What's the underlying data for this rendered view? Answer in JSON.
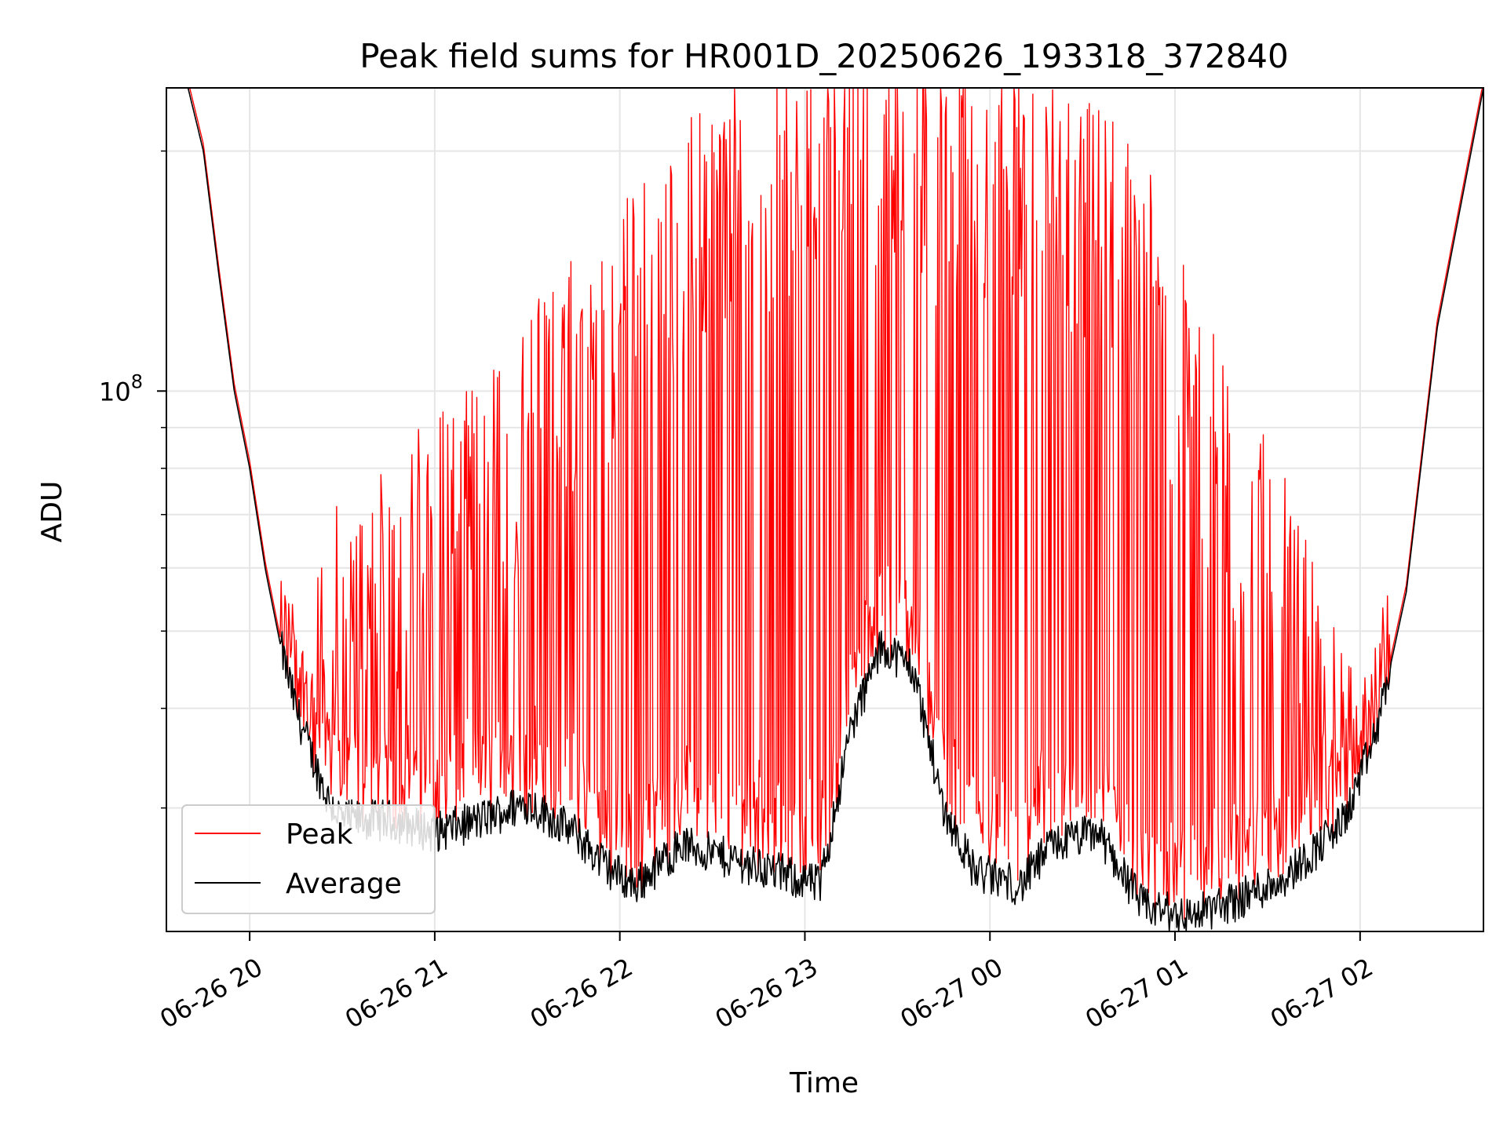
{
  "chart_data": {
    "type": "line",
    "title": "Peak field sums for HR001D_20250626_193318_372840",
    "xlabel": "Time",
    "ylabel": "ADU",
    "y_scale": "log",
    "xlim": [
      "2025-06-26 19:33",
      "2025-06-27 02:40"
    ],
    "ylim": [
      21000000,
      240000000
    ],
    "grid": true,
    "legend_position": "lower-left",
    "x_ticks": [
      "06-26 20",
      "06-26 21",
      "06-26 22",
      "06-26 23",
      "06-27 00",
      "06-27 01",
      "06-27 02"
    ],
    "y_ticks": [
      {
        "value": 100000000,
        "base": "10",
        "exp": "8"
      }
    ],
    "series": [
      {
        "name": "Average",
        "color": "#000000",
        "x": [
          "2025-06-26 19:33",
          "2025-06-26 19:40",
          "2025-06-26 19:45",
          "2025-06-26 19:50",
          "2025-06-26 19:55",
          "2025-06-26 20:00",
          "2025-06-26 20:05",
          "2025-06-26 20:10",
          "2025-06-26 20:15",
          "2025-06-26 20:20",
          "2025-06-26 20:25",
          "2025-06-26 20:30",
          "2025-06-26 20:45",
          "2025-06-26 21:00",
          "2025-06-26 21:15",
          "2025-06-26 21:30",
          "2025-06-26 21:45",
          "2025-06-26 21:55",
          "2025-06-26 22:05",
          "2025-06-26 22:20",
          "2025-06-26 22:35",
          "2025-06-26 22:50",
          "2025-06-26 23:05",
          "2025-06-26 23:15",
          "2025-06-26 23:25",
          "2025-06-26 23:35",
          "2025-06-26 23:45",
          "2025-06-26 23:55",
          "2025-06-27 00:10",
          "2025-06-27 00:20",
          "2025-06-27 00:35",
          "2025-06-27 00:50",
          "2025-06-27 01:05",
          "2025-06-27 01:20",
          "2025-06-27 01:35",
          "2025-06-27 01:45",
          "2025-06-27 01:55",
          "2025-06-27 02:05",
          "2025-06-27 02:15",
          "2025-06-27 02:25",
          "2025-06-27 02:40"
        ],
        "y": [
          240000000,
          240000000,
          200000000,
          140000000,
          100000000,
          80000000,
          60000000,
          48000000,
          40000000,
          35000000,
          31000000,
          29000000,
          29000000,
          28000000,
          29000000,
          30500000,
          28000000,
          25500000,
          24000000,
          27000000,
          26000000,
          25000000,
          24000000,
          38000000,
          48000000,
          45000000,
          30000000,
          25000000,
          24000000,
          27000000,
          28000000,
          22500000,
          22000000,
          23000000,
          24500000,
          26500000,
          29000000,
          37000000,
          56000000,
          120000000,
          240000000
        ]
      },
      {
        "name": "Peak",
        "color": "#ff0000",
        "x": [
          "2025-06-26 19:33",
          "2025-06-26 19:40",
          "2025-06-26 19:45",
          "2025-06-26 19:50",
          "2025-06-26 19:55",
          "2025-06-26 20:00",
          "2025-06-26 20:05",
          "2025-06-26 20:10",
          "2025-06-26 20:15",
          "2025-06-26 20:20",
          "2025-06-26 20:25",
          "2025-06-26 20:30",
          "2025-06-26 20:45",
          "2025-06-26 21:00",
          "2025-06-26 21:15",
          "2025-06-26 21:30",
          "2025-06-26 21:45",
          "2025-06-26 21:55",
          "2025-06-26 22:05",
          "2025-06-26 22:20",
          "2025-06-26 22:35",
          "2025-06-26 22:50",
          "2025-06-26 23:05",
          "2025-06-26 23:15",
          "2025-06-26 23:25",
          "2025-06-26 23:35",
          "2025-06-26 23:45",
          "2025-06-26 23:55",
          "2025-06-27 00:10",
          "2025-06-27 00:20",
          "2025-06-27 00:35",
          "2025-06-27 00:50",
          "2025-06-27 01:05",
          "2025-06-27 01:20",
          "2025-06-27 01:35",
          "2025-06-27 01:45",
          "2025-06-27 01:55",
          "2025-06-27 02:05",
          "2025-06-27 02:15",
          "2025-06-27 02:25",
          "2025-06-27 02:40"
        ],
        "y": [
          240000000,
          240000000,
          200000000,
          140000000,
          105000000,
          82000000,
          62000000,
          50000000,
          44000000,
          45000000,
          60000000,
          65000000,
          70000000,
          85000000,
          90000000,
          110000000,
          130000000,
          140000000,
          160000000,
          190000000,
          210000000,
          220000000,
          230000000,
          240000000,
          240000000,
          240000000,
          230000000,
          220000000,
          220000000,
          215000000,
          200000000,
          170000000,
          120000000,
          90000000,
          70000000,
          55000000,
          40000000,
          38000000,
          56000000,
          120000000,
          240000000
        ]
      }
    ]
  }
}
